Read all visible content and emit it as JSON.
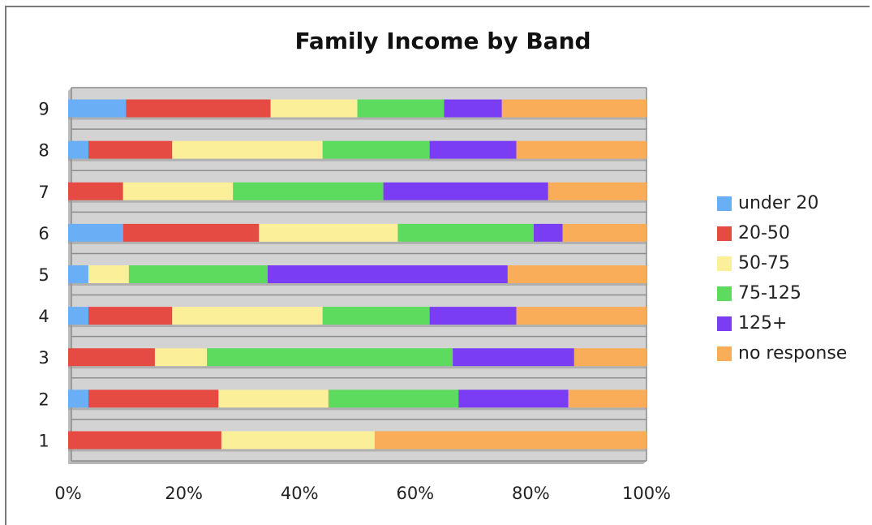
{
  "chart_data": {
    "type": "bar",
    "orientation": "horizontal",
    "stacked": true,
    "normalized": true,
    "title": "Family Income by Band",
    "categories": [
      "1",
      "2",
      "3",
      "4",
      "5",
      "6",
      "7",
      "8",
      "9"
    ],
    "xlim": [
      0,
      100
    ],
    "x_ticks": [
      "0%",
      "20%",
      "40%",
      "60%",
      "80%",
      "100%"
    ],
    "grid": true,
    "legend_position": "right",
    "series": [
      {
        "name": "under 20",
        "color": "#6aaef5",
        "values": [
          0,
          3.5,
          0,
          3.5,
          3.5,
          9.5,
          0,
          3.5,
          10
        ]
      },
      {
        "name": "20-50",
        "color": "#e54b42",
        "values": [
          26.5,
          22.5,
          15,
          14.5,
          0,
          23.5,
          9.5,
          14.5,
          25
        ]
      },
      {
        "name": "50-75",
        "color": "#fbef9a",
        "values": [
          26.5,
          19,
          9,
          26,
          7,
          24,
          19,
          26,
          15
        ]
      },
      {
        "name": "75-125",
        "color": "#5cdb5e",
        "values": [
          0,
          22.5,
          42.5,
          18.5,
          24,
          23.5,
          26,
          18.5,
          15
        ]
      },
      {
        "name": "125+",
        "color": "#7a3df4",
        "values": [
          0,
          19,
          21,
          15,
          41.5,
          5,
          28.5,
          15,
          10
        ]
      },
      {
        "name": "no response",
        "color": "#f9ad58",
        "values": [
          47,
          13.5,
          12.5,
          22.5,
          24,
          14.5,
          17,
          22.5,
          25
        ]
      }
    ]
  }
}
